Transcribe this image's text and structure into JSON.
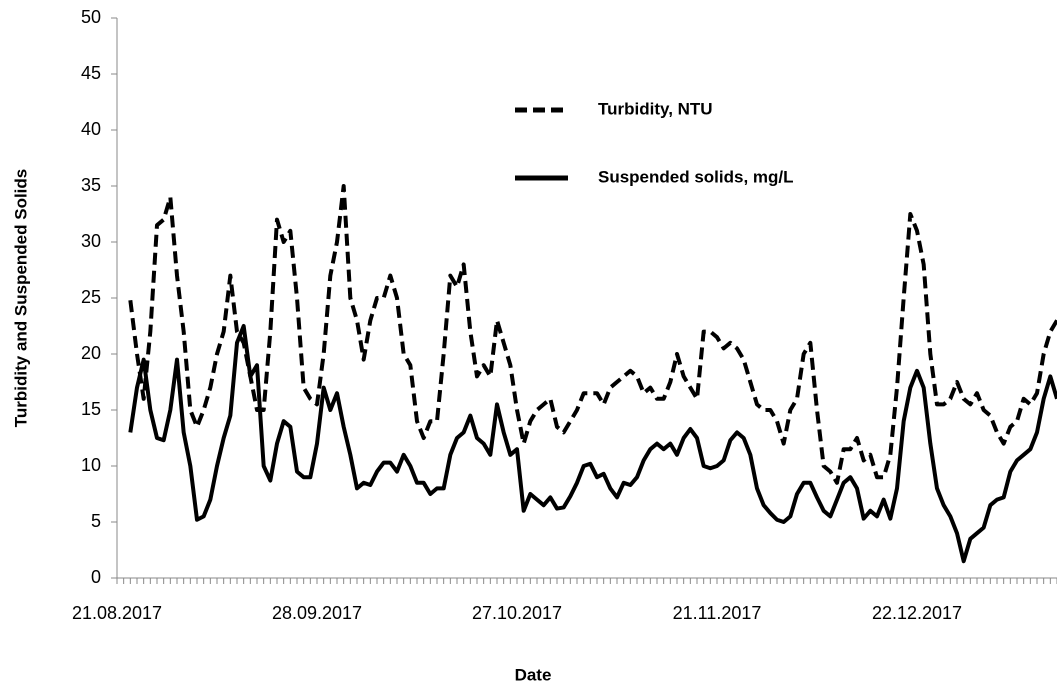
{
  "chart_data": {
    "type": "line",
    "xlabel": "Date",
    "ylabel": "Turbidity and Suspended Solids",
    "categories": [
      "21.08.2017",
      null,
      null,
      null,
      null,
      null,
      null,
      null,
      null,
      null,
      null,
      null,
      null,
      null,
      null,
      null,
      null,
      null,
      null,
      null,
      null,
      null,
      null,
      null,
      null,
      null,
      null,
      null,
      null,
      null,
      "28.09.2017",
      null,
      null,
      null,
      null,
      null,
      null,
      null,
      null,
      null,
      null,
      null,
      null,
      null,
      null,
      null,
      null,
      null,
      null,
      null,
      null,
      null,
      null,
      null,
      null,
      null,
      null,
      null,
      null,
      null,
      "27.10.2017",
      null,
      null,
      null,
      null,
      null,
      null,
      null,
      null,
      null,
      null,
      null,
      null,
      null,
      null,
      null,
      null,
      null,
      null,
      null,
      null,
      null,
      null,
      null,
      null,
      null,
      null,
      null,
      null,
      null,
      "21.11.2017",
      null,
      null,
      null,
      null,
      null,
      null,
      null,
      null,
      null,
      null,
      null,
      null,
      null,
      null,
      null,
      null,
      null,
      null,
      null,
      null,
      null,
      null,
      null,
      null,
      null,
      null,
      null,
      null,
      null,
      "22.12.2017",
      null,
      null,
      null,
      null,
      null,
      null,
      null,
      null,
      null,
      null,
      null,
      null,
      null,
      null,
      null,
      null,
      null,
      null,
      null,
      null,
      null
    ],
    "series": [
      {
        "name": "Turbidity, NTU",
        "color": "#000000",
        "dash": true,
        "values": [
          null,
          null,
          24.8,
          20,
          16,
          22,
          31.5,
          32,
          34,
          27,
          22,
          15,
          13.5,
          15,
          17,
          20,
          22,
          27,
          22,
          21,
          18,
          15,
          15,
          22,
          32,
          30,
          31,
          25,
          17,
          16,
          15.5,
          20,
          27,
          30,
          35,
          25,
          23,
          19.5,
          23,
          25,
          25,
          27,
          25,
          20,
          19,
          14,
          12.5,
          14,
          14,
          20,
          27,
          26,
          28,
          22,
          18,
          19,
          18,
          23,
          21,
          19,
          15,
          12,
          14,
          15,
          15.5,
          16,
          13.5,
          13,
          14,
          15,
          16.5,
          16.5,
          16.5,
          15.5,
          17,
          17.5,
          18,
          18.5,
          18,
          16.5,
          17,
          16,
          16,
          17.5,
          20,
          18,
          17,
          16,
          22,
          22,
          21.5,
          20.5,
          21,
          20.5,
          19.5,
          17.5,
          15.5,
          15,
          15,
          14,
          12,
          15,
          16,
          20,
          21,
          15,
          10,
          9.5,
          8.5,
          11.5,
          11.5,
          12.5,
          10.5,
          11,
          9,
          9,
          11,
          17,
          25,
          32.5,
          31,
          28,
          20,
          15.5,
          15.5,
          16,
          17.5,
          16,
          15.5,
          16.5,
          15,
          14.5,
          13,
          12,
          13.5,
          14,
          16,
          15.5,
          16.5,
          20,
          22,
          23
        ]
      },
      {
        "name": "Suspended solids, mg/L",
        "color": "#000000",
        "dash": false,
        "values": [
          null,
          null,
          13,
          17,
          19.5,
          15,
          12.5,
          12.3,
          15,
          19.5,
          13,
          10,
          5.2,
          5.5,
          7,
          10,
          12.5,
          14.5,
          21,
          22.5,
          18,
          19,
          10,
          8.7,
          12,
          14,
          13.5,
          9.5,
          9,
          9,
          12,
          17,
          15,
          16.5,
          13.5,
          11,
          8,
          8.5,
          8.3,
          9.5,
          10.3,
          10.3,
          9.5,
          11,
          10,
          8.5,
          8.5,
          7.5,
          8,
          8,
          11,
          12.5,
          13,
          14.5,
          12.5,
          12,
          11,
          15.5,
          13,
          11,
          11.5,
          6,
          7.5,
          7,
          6.5,
          7.2,
          6.2,
          6.3,
          7.3,
          8.5,
          10,
          10.2,
          9,
          9.3,
          8,
          7.2,
          8.5,
          8.3,
          9,
          10.5,
          11.5,
          12,
          11.5,
          12,
          11,
          12.5,
          13.3,
          12.5,
          10,
          9.8,
          10,
          10.5,
          12.3,
          13,
          12.5,
          11,
          8,
          6.5,
          5.8,
          5.2,
          5,
          5.5,
          7.5,
          8.5,
          8.5,
          7.2,
          6,
          5.5,
          7,
          8.5,
          9,
          8,
          5.3,
          6,
          5.5,
          7,
          5.3,
          8,
          14,
          17,
          18.5,
          17,
          12,
          8,
          6.5,
          5.5,
          4,
          1.5,
          3.5,
          4,
          4.5,
          6.5,
          7,
          7.2,
          9.5,
          10.5,
          11,
          11.5,
          13,
          16,
          18,
          16
        ]
      }
    ],
    "ylim": [
      0,
      50
    ],
    "yticks": [
      0,
      5,
      10,
      15,
      20,
      25,
      30,
      35,
      40,
      45,
      50
    ],
    "grid": false,
    "legend": "upper center"
  }
}
